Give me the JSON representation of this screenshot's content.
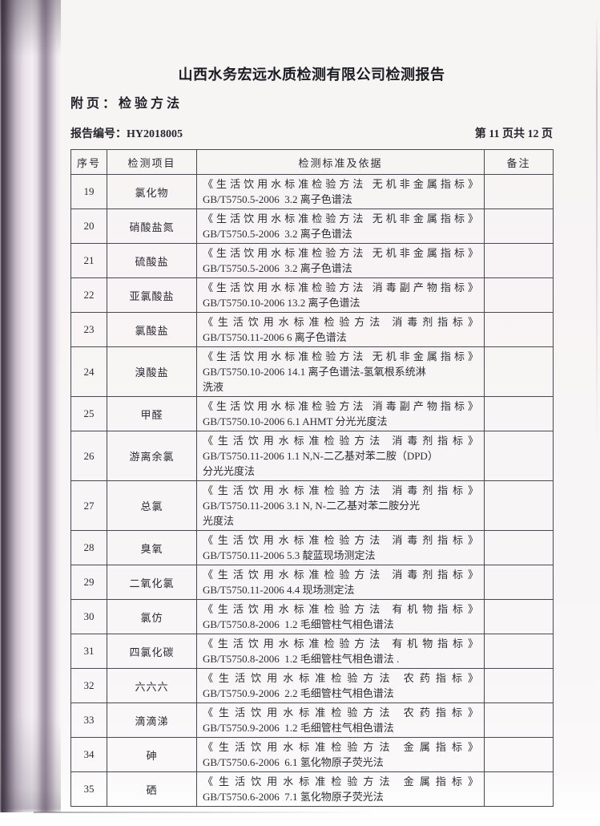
{
  "page": {
    "title": "山西水务宏远水质检测有限公司检测报告",
    "subtitle": "附页：检验方法",
    "report_no_label": "报告编号：",
    "report_no": "HY2018005",
    "page_info": "第 11 页共 12 页"
  },
  "table": {
    "headers": {
      "no": "序号",
      "item": "检测项目",
      "standard": "检测标准及依据",
      "remark": "备注"
    },
    "rows": [
      {
        "no": "19",
        "item": "氯化物",
        "std_title": "《生活饮用水标准检验方法 无机非金属指标》",
        "std_method": "GB/T5750.5-2006  3.2 离子色谱法",
        "remark": ""
      },
      {
        "no": "20",
        "item": "硝酸盐氮",
        "std_title": "《生活饮用水标准检验方法 无机非金属指标》",
        "std_method": "GB/T5750.5-2006  3.2 离子色谱法",
        "remark": ""
      },
      {
        "no": "21",
        "item": "硫酸盐",
        "std_title": "《生活饮用水标准检验方法 无机非金属指标》",
        "std_method": "GB/T5750.5-2006  3.2 离子色谱法",
        "remark": ""
      },
      {
        "no": "22",
        "item": "亚氯酸盐",
        "std_title": "《生活饮用水标准检验方法 消毒副产物指标》",
        "std_method": "GB/T5750.10-2006 13.2 离子色谱法",
        "remark": ""
      },
      {
        "no": "23",
        "item": "氯酸盐",
        "std_title": "《生活饮用水标准检验方法 消毒剂指标》",
        "std_method": "GB/T5750.11-2006 6 离子色谱法",
        "remark": ""
      },
      {
        "no": "24",
        "item": "溴酸盐",
        "std_title": "《生活饮用水标准检验方法 无机非金属指标》",
        "std_method": "GB/T5750.10-2006 14.1 离子色谱法-氢氧根系统淋\n洗液",
        "remark": ""
      },
      {
        "no": "25",
        "item": "甲醛",
        "std_title": "《生活饮用水标准检验方法 消毒副产物指标》",
        "std_method": "GB/T5750.10-2006 6.1 AHMT 分光光度法",
        "remark": ""
      },
      {
        "no": "26",
        "item": "游离余氯",
        "std_title": "《生活饮用水标准检验方法 消毒剂指标》",
        "std_method": "GB/T5750.11-2006 1.1 N,N-二乙基对苯二胺（DPD）\n分光光度法",
        "remark": ""
      },
      {
        "no": "27",
        "item": "总氯",
        "std_title": "《生活饮用水标准检验方法 消毒剂指标》",
        "std_method": "GB/T5750.11-2006 3.1 N, N-二乙基对苯二胺分光\n光度法",
        "remark": ""
      },
      {
        "no": "28",
        "item": "臭氧",
        "std_title": "《生活饮用水标准检验方法 消毒剂指标》",
        "std_method": "GB/T5750.11-2006 5.3 靛蓝现场测定法",
        "remark": ""
      },
      {
        "no": "29",
        "item": "二氧化氯",
        "std_title": "《生活饮用水标准检验方法 消毒剂指标》",
        "std_method": "GB/T5750.11-2006 4.4 现场测定法",
        "remark": ""
      },
      {
        "no": "30",
        "item": "氯仿",
        "std_title": "《生活饮用水标准检验方法 有机物指标》",
        "std_method": "GB/T5750.8-2006  1.2 毛细管柱气相色谱法",
        "remark": ""
      },
      {
        "no": "31",
        "item": "四氯化碳",
        "std_title": "《生活饮用水标准检验方法 有机物指标》",
        "std_method": "GB/T5750.8-2006  1.2 毛细管柱气相色谱法 .",
        "remark": ""
      },
      {
        "no": "32",
        "item": "六六六",
        "std_title": "《生活饮用水标准检验方法 农药指标》",
        "std_method": "GB/T5750.9-2006  2.2 毛细管柱气相色谱法",
        "remark": ""
      },
      {
        "no": "33",
        "item": "滴滴涕",
        "std_title": "《生活饮用水标准检验方法 农药指标》",
        "std_method": "GB/T5750.9-2006  1.2 毛细管柱气相色谱法",
        "remark": ""
      },
      {
        "no": "34",
        "item": "砷",
        "std_title": "《生活饮用水标准检验方法 金属指标》",
        "std_method": "GB/T5750.6-2006  6.1 氢化物原子荧光法",
        "remark": ""
      },
      {
        "no": "35",
        "item": "硒",
        "std_title": "《生活饮用水标准检验方法 金属指标》",
        "std_method": "GB/T5750.6-2006  7.1 氢化物原子荧光法",
        "remark": ""
      }
    ]
  }
}
